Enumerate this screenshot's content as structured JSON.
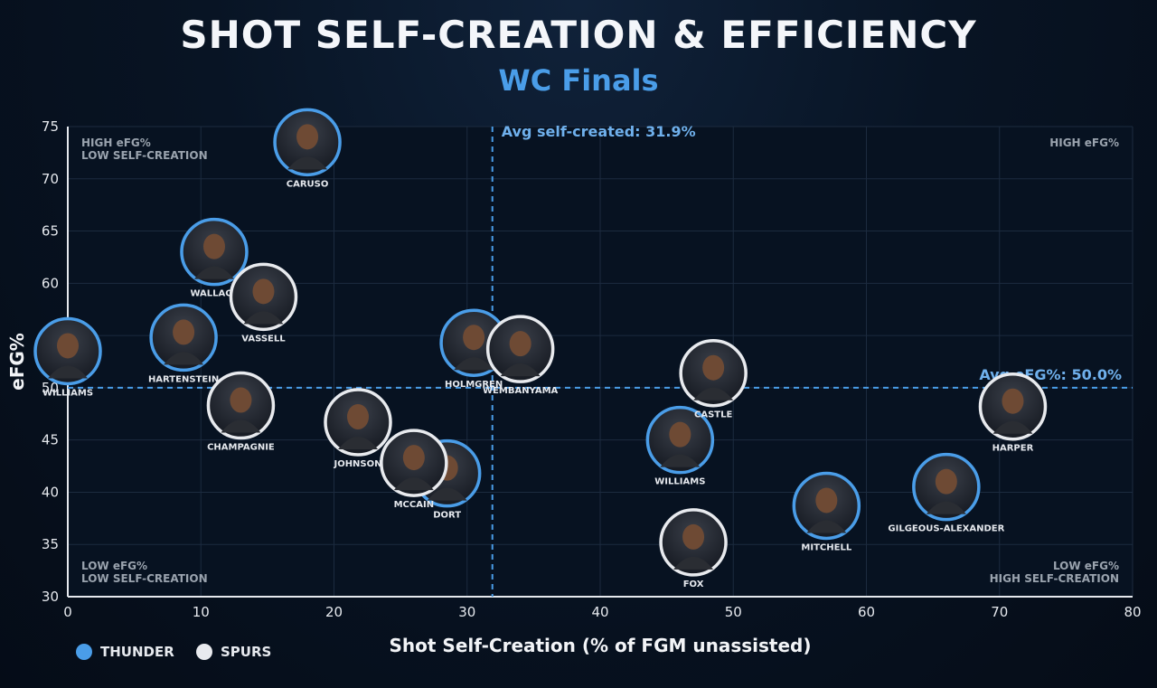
{
  "title": "SHOT SELF-CREATION & EFFICIENCY",
  "subtitle": "WC Finals",
  "legend": {
    "thunder": {
      "label": "THUNDER",
      "color": "#4a9de8"
    },
    "spurs": {
      "label": "SPURS",
      "color": "#e8eaee"
    }
  },
  "chart_data": {
    "type": "scatter",
    "xlabel": "Shot Self-Creation (% of FGM unassisted)",
    "ylabel": "eFG%",
    "xlim": [
      0,
      80
    ],
    "ylim": [
      30,
      75
    ],
    "xticks": [
      0,
      10,
      20,
      30,
      40,
      50,
      60,
      70,
      80
    ],
    "yticks": [
      30,
      35,
      40,
      45,
      50,
      55,
      60,
      65,
      70,
      75
    ],
    "grid": true,
    "reference_lines": [
      {
        "axis": "x",
        "value": 31.9,
        "label": "Avg self-created: 31.9%"
      },
      {
        "axis": "y",
        "value": 50.0,
        "label": "Avg eFG%: 50.0%"
      }
    ],
    "quadrant_labels": [
      {
        "position": "top-left",
        "lines": [
          "HIGH eFG%",
          "LOW SELF-CREATION"
        ]
      },
      {
        "position": "top-right",
        "lines": [
          "HIGH eFG%"
        ]
      },
      {
        "position": "bottom-left",
        "lines": [
          "LOW eFG%",
          "LOW SELF-CREATION"
        ]
      },
      {
        "position": "bottom-right",
        "lines": [
          "LOW eFG%",
          "HIGH SELF-CREATION"
        ]
      }
    ],
    "series": [
      {
        "name": "THUNDER",
        "color": "#4a9de8",
        "points": [
          {
            "label": "CARUSO",
            "x": 18,
            "y": 73.5
          },
          {
            "label": "WALLACE",
            "x": 11,
            "y": 63
          },
          {
            "label": "HARTENSTEIN",
            "x": 8.7,
            "y": 54.8
          },
          {
            "label": "WILLIAMS",
            "x": 0,
            "y": 53.5
          },
          {
            "label": "HOLMGREN",
            "x": 30.5,
            "y": 54.3
          },
          {
            "label": "DORT",
            "x": 28.5,
            "y": 41.8
          },
          {
            "label": "WILLIAMS",
            "x": 46,
            "y": 45
          },
          {
            "label": "MITCHELL",
            "x": 57,
            "y": 38.7
          },
          {
            "label": "GILGEOUS-ALEXANDER",
            "x": 66,
            "y": 40.5
          }
        ]
      },
      {
        "name": "SPURS",
        "color": "#e8eaee",
        "points": [
          {
            "label": "VASSELL",
            "x": 14.7,
            "y": 58.7
          },
          {
            "label": "CHAMPAGNIE",
            "x": 13,
            "y": 48.3
          },
          {
            "label": "JOHNSON",
            "x": 21.8,
            "y": 46.7
          },
          {
            "label": "MCCAIN",
            "x": 26,
            "y": 42.8
          },
          {
            "label": "WEMBANYAMA",
            "x": 34,
            "y": 53.7
          },
          {
            "label": "CASTLE",
            "x": 48.5,
            "y": 51.4
          },
          {
            "label": "FOX",
            "x": 47,
            "y": 35.2
          },
          {
            "label": "HARPER",
            "x": 71,
            "y": 48.2
          }
        ]
      }
    ]
  }
}
